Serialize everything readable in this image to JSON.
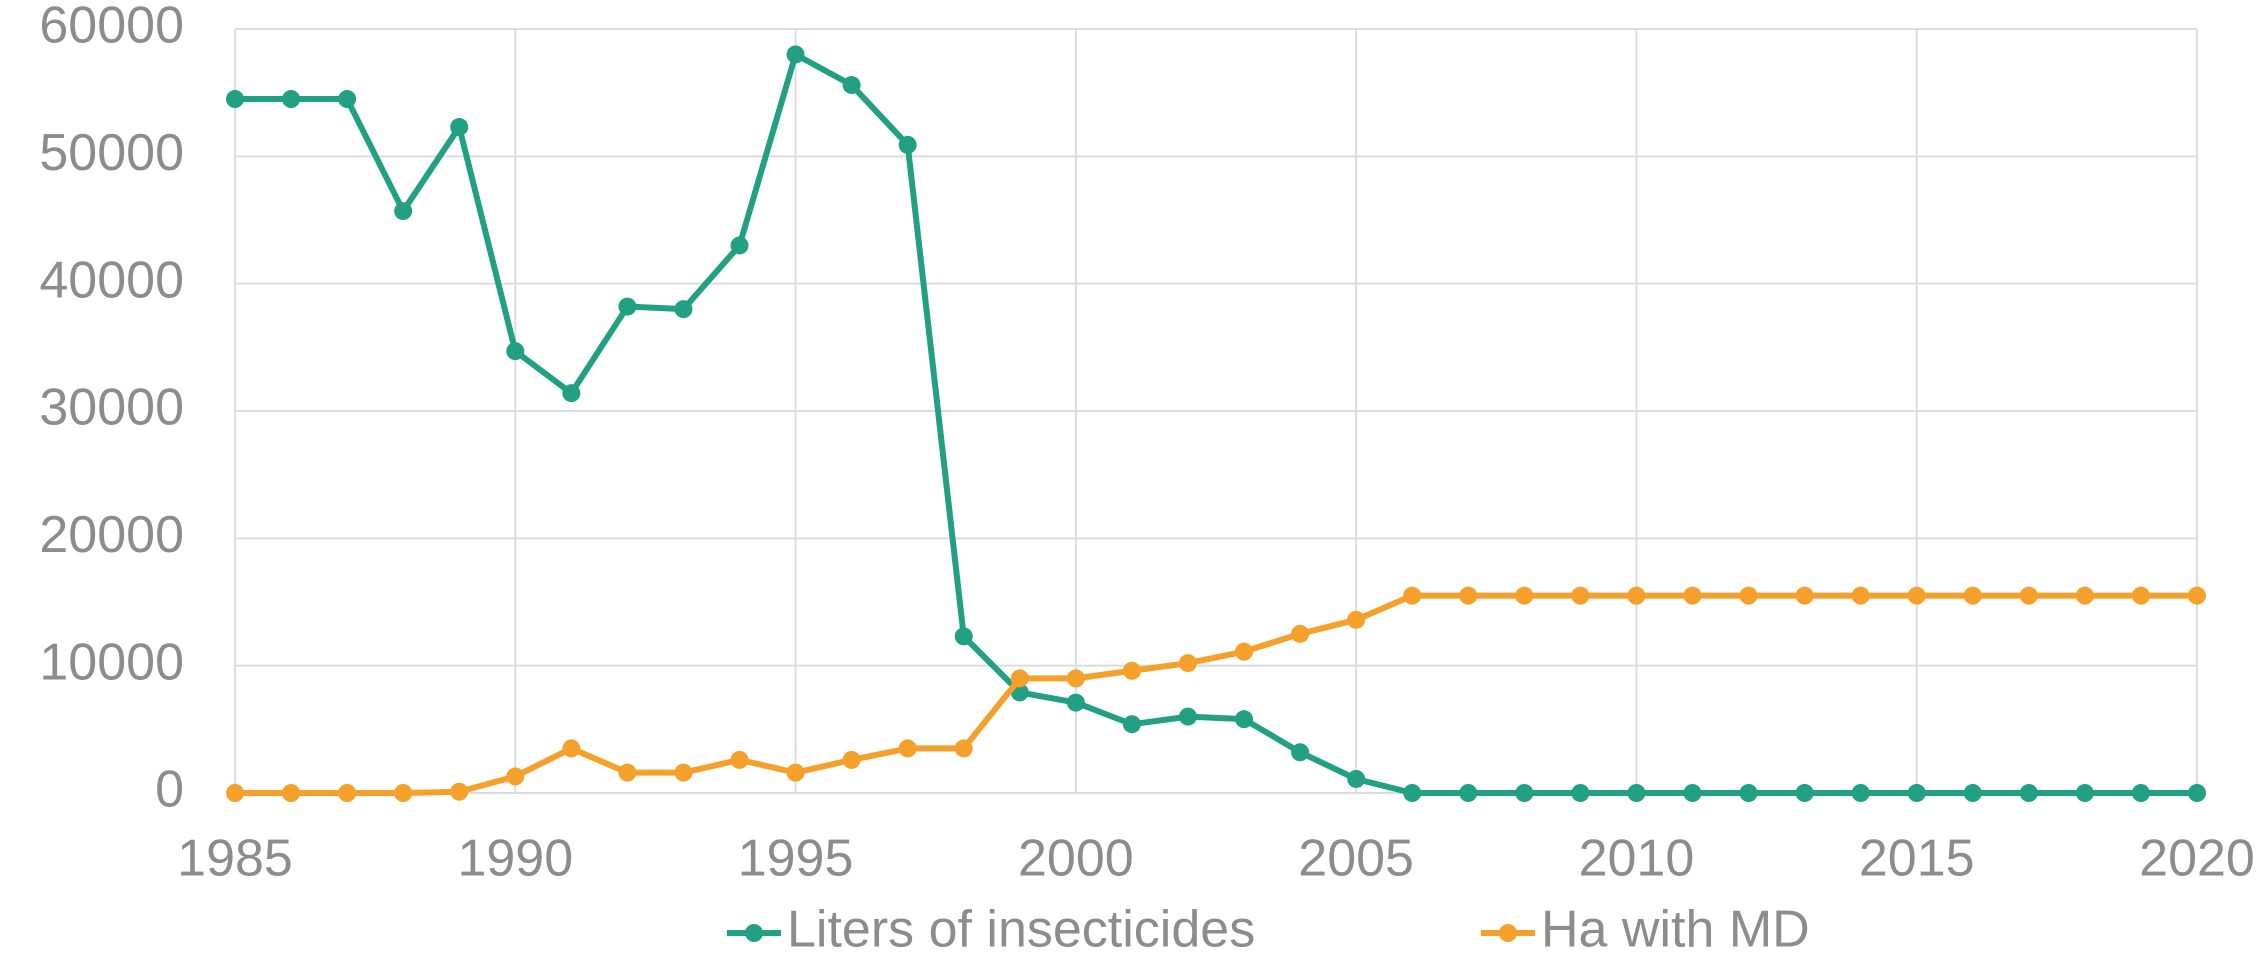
{
  "chart_data": {
    "type": "line",
    "x": [
      1985,
      1986,
      1987,
      1988,
      1989,
      1990,
      1991,
      1992,
      1993,
      1994,
      1995,
      1996,
      1997,
      1998,
      1999,
      2000,
      2001,
      2002,
      2003,
      2004,
      2005,
      2006,
      2007,
      2008,
      2009,
      2010,
      2011,
      2012,
      2013,
      2014,
      2015,
      2016,
      2017,
      2018,
      2019,
      2020
    ],
    "series": [
      {
        "name": "Liters of insecticides",
        "color": "#21a083",
        "values": [
          54500,
          54500,
          54500,
          45700,
          52300,
          34700,
          31400,
          38200,
          38000,
          43000,
          58000,
          55600,
          50900,
          12300,
          7900,
          7100,
          5400,
          6000,
          5800,
          3200,
          1100,
          0,
          0,
          0,
          0,
          0,
          0,
          0,
          0,
          0,
          0,
          0,
          0,
          0,
          0,
          0
        ]
      },
      {
        "name": "Ha with MD",
        "color": "#f4a02b",
        "values": [
          0,
          0,
          0,
          0,
          100,
          1300,
          3500,
          1600,
          1600,
          2600,
          1600,
          2600,
          3500,
          3500,
          9000,
          9000,
          9600,
          10200,
          11100,
          12500,
          13600,
          15500,
          15500,
          15500,
          15500,
          15500,
          15500,
          15500,
          15500,
          15500,
          15500,
          15500,
          15500,
          15500,
          15500,
          15500
        ]
      }
    ],
    "xlim": [
      1985,
      2020
    ],
    "xticks": [
      1985,
      1990,
      1995,
      2000,
      2005,
      2010,
      2015,
      2020
    ],
    "ylim": [
      0,
      60000
    ],
    "yticks": [
      0,
      10000,
      20000,
      30000,
      40000,
      50000,
      60000
    ],
    "grid": true,
    "legend": "bottom"
  }
}
